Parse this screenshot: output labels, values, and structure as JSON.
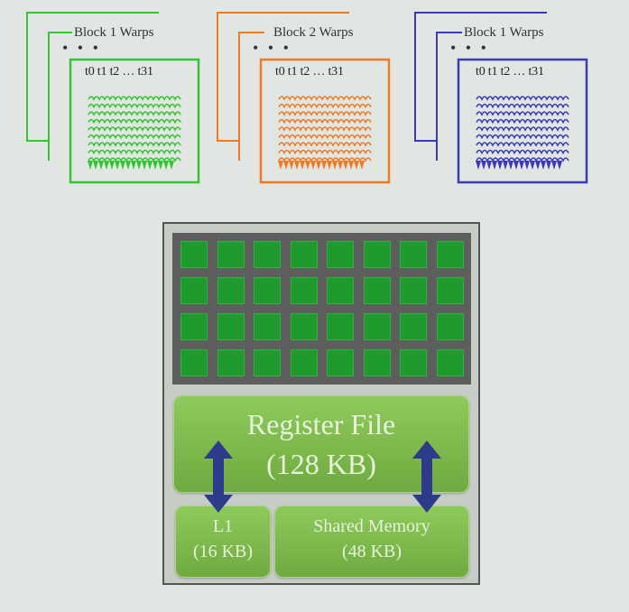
{
  "blocks": [
    {
      "title": "Block 1 Warps",
      "threads": "t0 t1 t2 … t31",
      "color": "#33c433"
    },
    {
      "title": "Block 2 Warps",
      "threads": "t0 t1 t2 … t31",
      "color": "#ee7a26"
    },
    {
      "title": "Block 1 Warps",
      "threads": "t0 t1 t2 … t31",
      "color": "#3a3ab8"
    }
  ],
  "dots": "• • •",
  "sm": {
    "core_color": "#1f9a2e",
    "register_file": {
      "line1": "Register File",
      "line2": "(128 KB)"
    },
    "l1": {
      "line1": "L1",
      "line2": "(16 KB)"
    },
    "shared": {
      "line1": "Shared Memory",
      "line2": "(48 KB)"
    },
    "arrow_color": "#2d3c8a"
  }
}
